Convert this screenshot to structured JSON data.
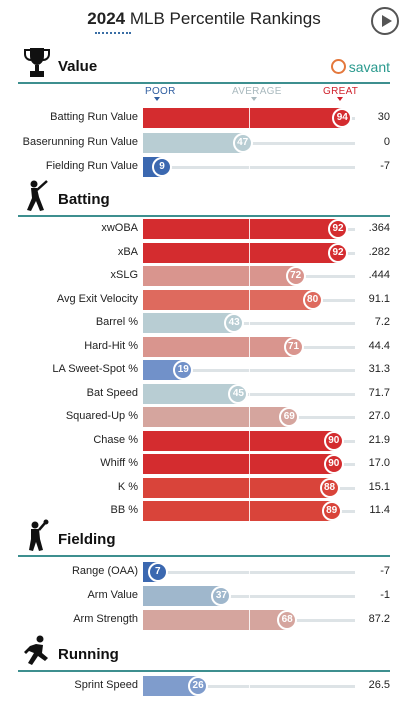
{
  "header": {
    "year": "2024",
    "title": "MLB Percentile Rankings",
    "play_icon": "play-icon"
  },
  "brand": {
    "name": "savant",
    "icon": "savant-logo-icon"
  },
  "scale": {
    "poor": "POOR",
    "average": "AVERAGE",
    "great": "GREAT"
  },
  "colors": {
    "poor": "#3b68b0",
    "average": "#b8cdd3",
    "great": "#d42c2f",
    "section_rule": "#3d8f8f"
  },
  "sections": [
    {
      "label": "Value",
      "icon": "trophy-icon",
      "rows": [
        {
          "label": "Batting Run Value",
          "percentile": 94,
          "value": "30",
          "color": "#d42c2f"
        },
        {
          "label": "Baserunning Run Value",
          "percentile": 47,
          "value": "0",
          "color": "#b8cdd3"
        },
        {
          "label": "Fielding Run Value",
          "percentile": 9,
          "value": "-7",
          "color": "#3b68b0"
        }
      ]
    },
    {
      "label": "Batting",
      "icon": "batter-icon",
      "rows": [
        {
          "label": "xwOBA",
          "percentile": 92,
          "value": ".364",
          "color": "#d42c2f"
        },
        {
          "label": "xBA",
          "percentile": 92,
          "value": ".282",
          "color": "#d42c2f"
        },
        {
          "label": "xSLG",
          "percentile": 72,
          "value": ".444",
          "color": "#d9958e"
        },
        {
          "label": "Avg Exit Velocity",
          "percentile": 80,
          "value": "91.1",
          "color": "#de6a5e"
        },
        {
          "label": "Barrel %",
          "percentile": 43,
          "value": "7.2",
          "color": "#b8cdd3"
        },
        {
          "label": "Hard-Hit %",
          "percentile": 71,
          "value": "44.4",
          "color": "#d9958e"
        },
        {
          "label": "LA Sweet-Spot %",
          "percentile": 19,
          "value": "31.3",
          "color": "#7191c9"
        },
        {
          "label": "Bat Speed",
          "percentile": 45,
          "value": "71.7",
          "color": "#b8cdd3"
        },
        {
          "label": "Squared-Up %",
          "percentile": 69,
          "value": "27.0",
          "color": "#d5a59e"
        },
        {
          "label": "Chase %",
          "percentile": 90,
          "value": "21.9",
          "color": "#d42c2f"
        },
        {
          "label": "Whiff %",
          "percentile": 90,
          "value": "17.0",
          "color": "#d42c2f"
        },
        {
          "label": "K %",
          "percentile": 88,
          "value": "15.1",
          "color": "#d9443a"
        },
        {
          "label": "BB %",
          "percentile": 89,
          "value": "11.4",
          "color": "#d9443a"
        }
      ]
    },
    {
      "label": "Fielding",
      "icon": "fielder-icon",
      "rows": [
        {
          "label": "Range (OAA)",
          "percentile": 7,
          "value": "-7",
          "color": "#3b68b0"
        },
        {
          "label": "Arm Value",
          "percentile": 37,
          "value": "-1",
          "color": "#9fb7cc"
        },
        {
          "label": "Arm Strength",
          "percentile": 68,
          "value": "87.2",
          "color": "#d5a59e"
        }
      ]
    },
    {
      "label": "Running",
      "icon": "runner-icon",
      "rows": [
        {
          "label": "Sprint Speed",
          "percentile": 26,
          "value": "26.5",
          "color": "#7f9ccc"
        }
      ]
    }
  ]
}
